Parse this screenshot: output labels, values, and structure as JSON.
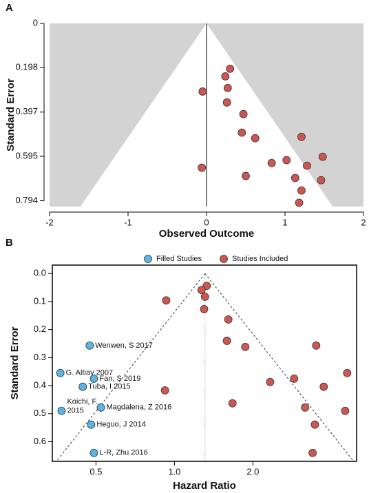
{
  "chart_data": [
    {
      "type": "scatter",
      "panel_label": "A",
      "xlabel": "Observed Outcome",
      "ylabel": "Standard Error",
      "xlim": [
        -2,
        2
      ],
      "ylim": [
        0.82,
        0
      ],
      "xticks": [
        -2,
        -1,
        0,
        1,
        2
      ],
      "yticks": [
        0,
        0.198,
        0.397,
        0.595,
        0.794
      ],
      "xscale": "linear",
      "funnel_style": "shaded",
      "center": 0,
      "color": "#cd5652",
      "x": [
        0.3,
        0.24,
        -0.05,
        0.27,
        0.26,
        0.47,
        0.45,
        0.62,
        1.21,
        1.48,
        1.02,
        0.83,
        1.28,
        -0.06,
        0.5,
        1.13,
        1.46,
        1.21,
        1.18
      ],
      "values": [
        0.203,
        0.237,
        0.305,
        0.289,
        0.354,
        0.406,
        0.489,
        0.514,
        0.508,
        0.597,
        0.612,
        0.625,
        0.637,
        0.646,
        0.683,
        0.692,
        0.702,
        0.748,
        0.803
      ]
    },
    {
      "type": "scatter",
      "panel_label": "B",
      "xlabel": "Hazard Ratio",
      "ylabel": "Standard Error",
      "xlim": [
        0.34,
        5.0
      ],
      "ylim": [
        0.67,
        -0.03
      ],
      "xticks": [
        0.5,
        {
          "value": 1,
          "label": "1.0"
        },
        {
          "value": 2,
          "label": "2.0"
        }
      ],
      "yticks": [
        {
          "value": 0,
          "label": "0.0"
        },
        0.1,
        0.2,
        0.3,
        0.4,
        0.5,
        0.6
      ],
      "xscale": "log",
      "funnel_style": "dotted",
      "center": 1.31,
      "legend": "top",
      "series": [
        {
          "name": "Filled Studies",
          "color": "#5ab4e6",
          "x": [
            0.473,
            0.365,
            0.491,
            0.445,
            0.369,
            0.522,
            0.479,
            0.491
          ],
          "values": [
            0.257,
            0.355,
            0.375,
            0.404,
            0.49,
            0.478,
            0.539,
            0.64
          ],
          "labels": [
            [
              "Wenwen, S 2017"
            ],
            [
              "G. Altiay 2007"
            ],
            [
              "Fan, S 2019"
            ],
            [
              "Tuba, I 2015"
            ],
            [
              "Koichi, F.",
              "2015"
            ],
            [
              "Magdalena, Z 2016"
            ],
            [
              "Heguo, J 2014"
            ],
            [
              "L-R, Zhu 2016"
            ]
          ]
        },
        {
          "name": "Studies Included",
          "color": "#cd5652",
          "x": [
            1.33,
            1.27,
            1.31,
            0.93,
            1.3,
            1.61,
            1.59,
            1.87,
            3.5,
            4.6,
            2.88,
            2.33,
            3.74,
            0.92,
            1.67,
            3.17,
            4.52,
            3.46,
            3.39
          ],
          "values": [
            0.044,
            0.059,
            0.083,
            0.096,
            0.127,
            0.164,
            0.24,
            0.262,
            0.257,
            0.355,
            0.375,
            0.387,
            0.404,
            0.417,
            0.463,
            0.478,
            0.49,
            0.539,
            0.64
          ]
        }
      ]
    }
  ]
}
